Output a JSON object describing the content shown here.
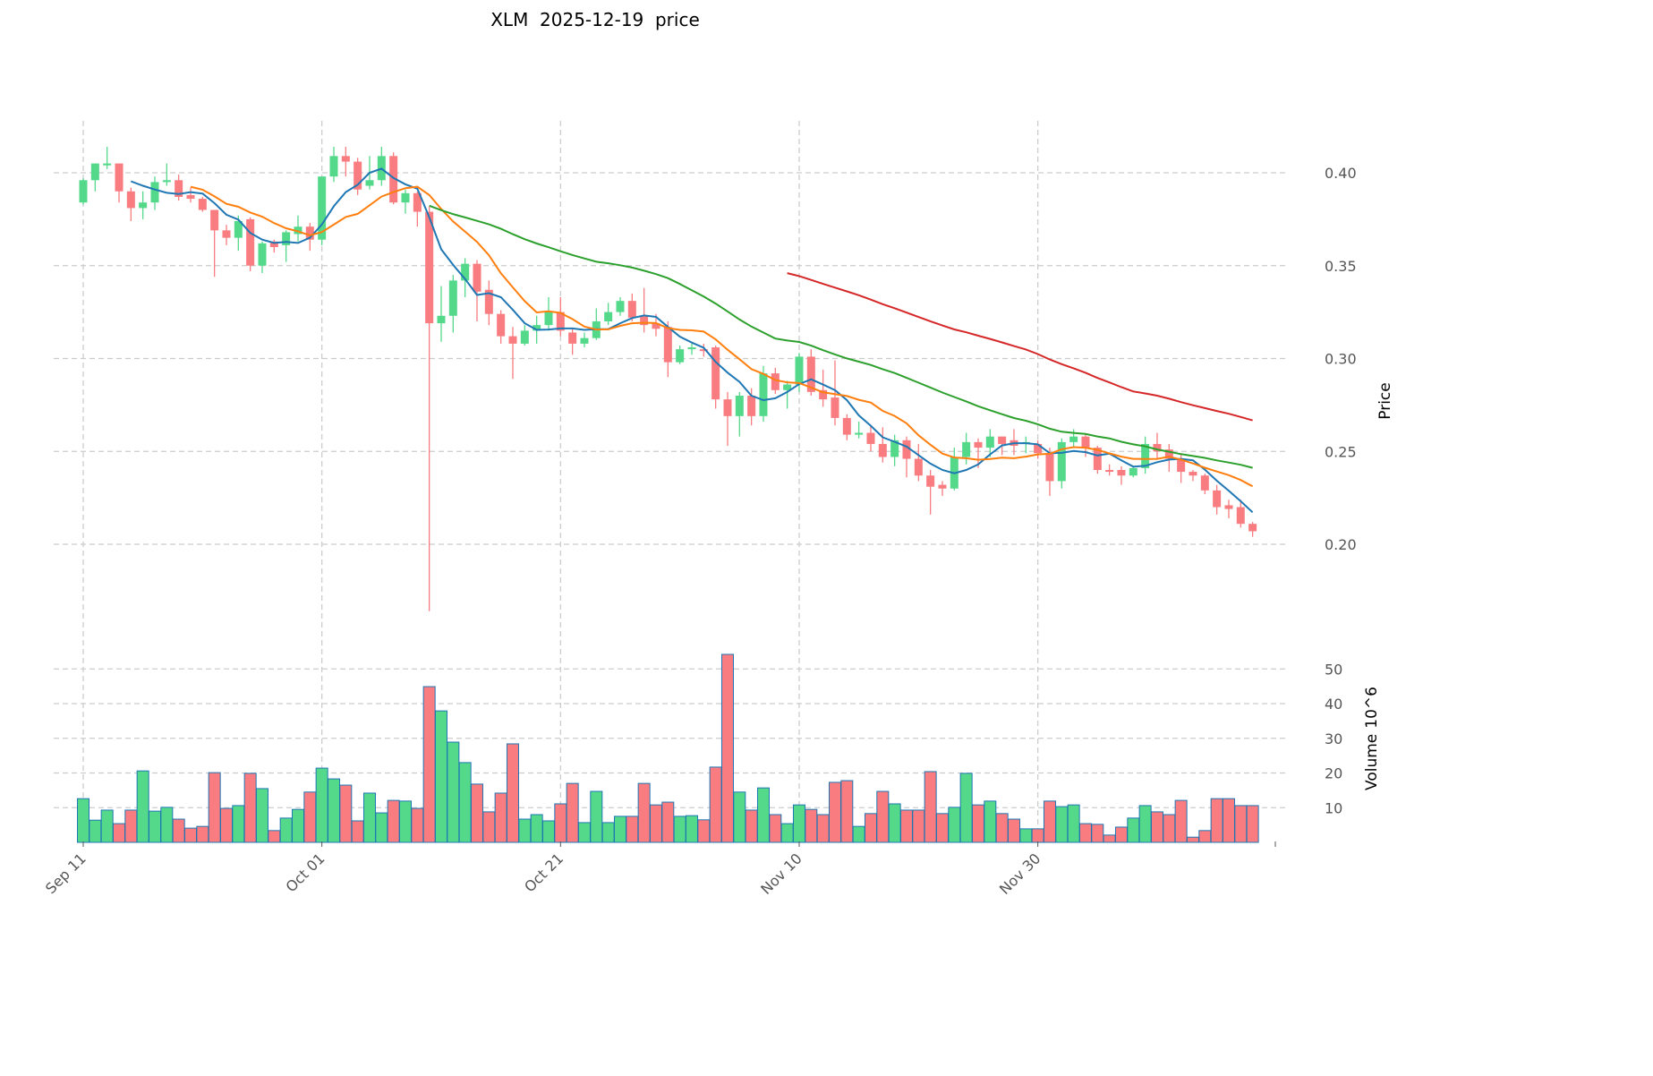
{
  "title": "XLM  2025-12-19  price",
  "colors": {
    "up": "#54d98b",
    "down": "#f87c80",
    "edge": "#1f77b4",
    "ma5": "#1f77b4",
    "ma10": "#ff7f0e",
    "ma30": "#2ca02c",
    "ma60": "#d62728",
    "grid": "#cccccc"
  },
  "chart_data": {
    "type": "candlestick",
    "title": "XLM  2025-12-19  price",
    "ylabel": "Price",
    "ylabel_volume": "Volume",
    "volume_unit": "10^6",
    "ylim": [
      0.14,
      0.43
    ],
    "yticks": [
      0.2,
      0.25,
      0.3,
      0.35,
      0.4
    ],
    "ytick_labels": [
      "0.20",
      "0.25",
      "0.30",
      "0.35",
      "0.40"
    ],
    "volume_ticks": [
      10,
      20,
      30,
      40,
      50
    ],
    "volume_tick_labels": [
      "10",
      "20",
      "30",
      "40",
      "50"
    ],
    "xtick_labels": [
      "Sep 11",
      "Oct 01",
      "Oct 21",
      "Nov 10",
      "Nov 30"
    ],
    "xtick_indices": [
      0,
      20,
      40,
      60,
      80
    ],
    "moving_averages": [
      5,
      10,
      30,
      60
    ],
    "start_date": "2025-09-11",
    "ohlc": [
      [
        0.384,
        0.397,
        0.383,
        0.396
      ],
      [
        0.396,
        0.405,
        0.39,
        0.405
      ],
      [
        0.404,
        0.414,
        0.402,
        0.405
      ],
      [
        0.405,
        0.405,
        0.384,
        0.39
      ],
      [
        0.39,
        0.392,
        0.374,
        0.381
      ],
      [
        0.381,
        0.39,
        0.375,
        0.384
      ],
      [
        0.384,
        0.398,
        0.38,
        0.395
      ],
      [
        0.395,
        0.405,
        0.393,
        0.396
      ],
      [
        0.396,
        0.399,
        0.385,
        0.387
      ],
      [
        0.388,
        0.392,
        0.384,
        0.386
      ],
      [
        0.386,
        0.387,
        0.379,
        0.38
      ],
      [
        0.38,
        0.38,
        0.344,
        0.369
      ],
      [
        0.369,
        0.372,
        0.361,
        0.365
      ],
      [
        0.365,
        0.377,
        0.358,
        0.374
      ],
      [
        0.375,
        0.376,
        0.347,
        0.35
      ],
      [
        0.35,
        0.363,
        0.346,
        0.362
      ],
      [
        0.363,
        0.364,
        0.357,
        0.36
      ],
      [
        0.361,
        0.369,
        0.352,
        0.368
      ],
      [
        0.367,
        0.377,
        0.363,
        0.371
      ],
      [
        0.371,
        0.373,
        0.358,
        0.364
      ],
      [
        0.364,
        0.398,
        0.361,
        0.398
      ],
      [
        0.398,
        0.414,
        0.395,
        0.409
      ],
      [
        0.409,
        0.414,
        0.398,
        0.406
      ],
      [
        0.406,
        0.408,
        0.388,
        0.391
      ],
      [
        0.393,
        0.409,
        0.391,
        0.396
      ],
      [
        0.396,
        0.414,
        0.393,
        0.409
      ],
      [
        0.409,
        0.411,
        0.383,
        0.384
      ],
      [
        0.384,
        0.391,
        0.378,
        0.389
      ],
      [
        0.389,
        0.39,
        0.371,
        0.379
      ],
      [
        0.379,
        0.382,
        0.164,
        0.319
      ],
      [
        0.319,
        0.339,
        0.309,
        0.323
      ],
      [
        0.323,
        0.345,
        0.314,
        0.342
      ],
      [
        0.342,
        0.354,
        0.333,
        0.351
      ],
      [
        0.351,
        0.353,
        0.32,
        0.336
      ],
      [
        0.337,
        0.342,
        0.318,
        0.324
      ],
      [
        0.324,
        0.326,
        0.308,
        0.312
      ],
      [
        0.312,
        0.317,
        0.289,
        0.308
      ],
      [
        0.308,
        0.318,
        0.307,
        0.315
      ],
      [
        0.315,
        0.323,
        0.308,
        0.318
      ],
      [
        0.318,
        0.333,
        0.315,
        0.325
      ],
      [
        0.325,
        0.333,
        0.312,
        0.315
      ],
      [
        0.314,
        0.316,
        0.302,
        0.308
      ],
      [
        0.308,
        0.314,
        0.306,
        0.311
      ],
      [
        0.311,
        0.327,
        0.31,
        0.32
      ],
      [
        0.32,
        0.33,
        0.318,
        0.325
      ],
      [
        0.325,
        0.333,
        0.323,
        0.331
      ],
      [
        0.331,
        0.335,
        0.32,
        0.322
      ],
      [
        0.323,
        0.338,
        0.314,
        0.318
      ],
      [
        0.319,
        0.324,
        0.312,
        0.316
      ],
      [
        0.317,
        0.32,
        0.29,
        0.298
      ],
      [
        0.298,
        0.307,
        0.297,
        0.305
      ],
      [
        0.305,
        0.308,
        0.302,
        0.306
      ],
      [
        0.305,
        0.308,
        0.301,
        0.304
      ],
      [
        0.306,
        0.307,
        0.273,
        0.278
      ],
      [
        0.278,
        0.282,
        0.253,
        0.269
      ],
      [
        0.269,
        0.282,
        0.258,
        0.28
      ],
      [
        0.28,
        0.284,
        0.264,
        0.269
      ],
      [
        0.269,
        0.296,
        0.266,
        0.292
      ],
      [
        0.292,
        0.295,
        0.281,
        0.283
      ],
      [
        0.283,
        0.288,
        0.273,
        0.286
      ],
      [
        0.286,
        0.303,
        0.282,
        0.301
      ],
      [
        0.301,
        0.305,
        0.28,
        0.282
      ],
      [
        0.283,
        0.294,
        0.274,
        0.278
      ],
      [
        0.279,
        0.299,
        0.264,
        0.268
      ],
      [
        0.268,
        0.27,
        0.256,
        0.259
      ],
      [
        0.259,
        0.266,
        0.257,
        0.26
      ],
      [
        0.26,
        0.264,
        0.25,
        0.254
      ],
      [
        0.254,
        0.263,
        0.244,
        0.247
      ],
      [
        0.247,
        0.259,
        0.242,
        0.256
      ],
      [
        0.256,
        0.258,
        0.236,
        0.246
      ],
      [
        0.246,
        0.254,
        0.234,
        0.237
      ],
      [
        0.237,
        0.24,
        0.216,
        0.231
      ],
      [
        0.232,
        0.234,
        0.226,
        0.23
      ],
      [
        0.23,
        0.252,
        0.229,
        0.247
      ],
      [
        0.247,
        0.26,
        0.243,
        0.255
      ],
      [
        0.255,
        0.257,
        0.241,
        0.252
      ],
      [
        0.252,
        0.262,
        0.247,
        0.258
      ],
      [
        0.258,
        0.258,
        0.248,
        0.254
      ],
      [
        0.256,
        0.262,
        0.248,
        0.253
      ],
      [
        0.254,
        0.258,
        0.249,
        0.255
      ],
      [
        0.254,
        0.256,
        0.246,
        0.249
      ],
      [
        0.249,
        0.252,
        0.226,
        0.234
      ],
      [
        0.234,
        0.257,
        0.23,
        0.255
      ],
      [
        0.255,
        0.262,
        0.252,
        0.258
      ],
      [
        0.258,
        0.259,
        0.247,
        0.252
      ],
      [
        0.252,
        0.253,
        0.238,
        0.24
      ],
      [
        0.24,
        0.243,
        0.237,
        0.239
      ],
      [
        0.24,
        0.242,
        0.232,
        0.237
      ],
      [
        0.237,
        0.242,
        0.236,
        0.241
      ],
      [
        0.241,
        0.258,
        0.238,
        0.254
      ],
      [
        0.254,
        0.26,
        0.246,
        0.25
      ],
      [
        0.251,
        0.254,
        0.239,
        0.246
      ],
      [
        0.246,
        0.249,
        0.233,
        0.239
      ],
      [
        0.239,
        0.24,
        0.234,
        0.237
      ],
      [
        0.237,
        0.238,
        0.227,
        0.229
      ],
      [
        0.229,
        0.232,
        0.216,
        0.22
      ],
      [
        0.221,
        0.224,
        0.214,
        0.219
      ],
      [
        0.22,
        0.224,
        0.209,
        0.211
      ],
      [
        0.211,
        0.212,
        0.204,
        0.207
      ]
    ],
    "volume": [
      12.6,
      6.4,
      9.3,
      5.4,
      9.3,
      20.6,
      9.0,
      10.1,
      6.7,
      4.1,
      4.6,
      20.1,
      9.8,
      10.6,
      19.9,
      15.5,
      3.4,
      7.0,
      9.5,
      14.5,
      21.4,
      18.3,
      16.5,
      6.2,
      14.2,
      8.5,
      12.1,
      11.9,
      9.8,
      44.9,
      37.9,
      28.9,
      23.0,
      16.8,
      8.8,
      14.2,
      28.4,
      6.7,
      8.0,
      6.2,
      11.1,
      17.0,
      5.7,
      14.7,
      5.7,
      7.5,
      7.5,
      17.0,
      10.8,
      11.6,
      7.5,
      7.7,
      6.5,
      21.7,
      54.2,
      14.5,
      9.3,
      15.7,
      8.0,
      5.4,
      10.8,
      9.5,
      8.0,
      17.3,
      17.8,
      4.6,
      8.3,
      14.7,
      11.1,
      9.3,
      9.3,
      20.4,
      8.3,
      10.1,
      19.9,
      10.8,
      11.9,
      8.3,
      6.7,
      3.9,
      3.9,
      11.9,
      10.3,
      10.8,
      5.4,
      5.2,
      2.1,
      4.4,
      7.0,
      10.6,
      8.8,
      8.0,
      12.1,
      1.5,
      3.4,
      12.6,
      12.6,
      10.6,
      10.6
    ]
  }
}
